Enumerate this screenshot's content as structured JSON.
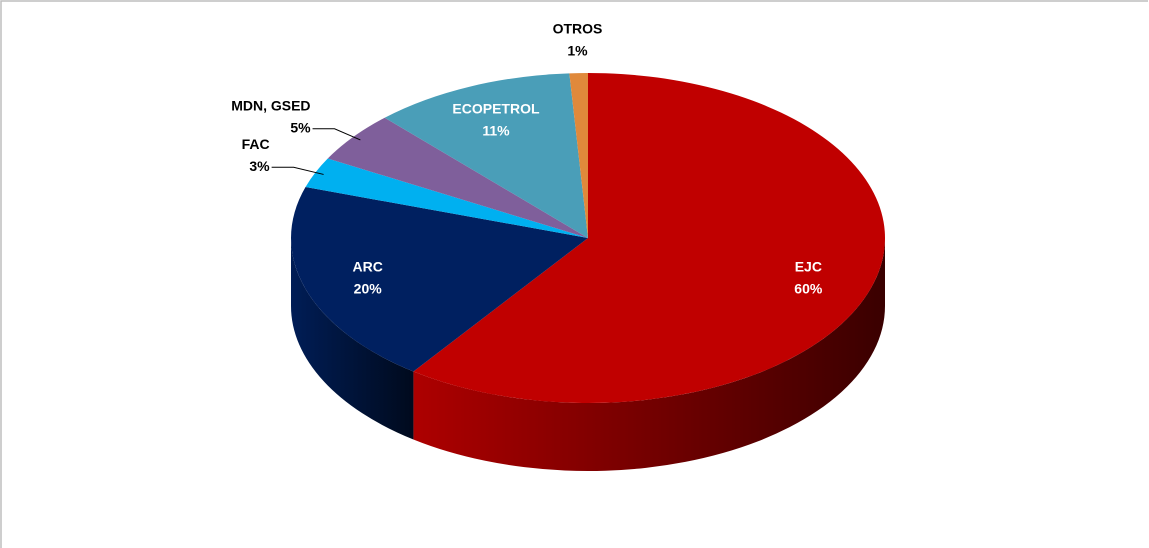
{
  "chart_data": {
    "type": "pie",
    "categories": [
      "EJC",
      "ARC",
      "FAC",
      "MDN, GSED",
      "ECOPETROL",
      "OTROS"
    ],
    "values": [
      60,
      20,
      3,
      5,
      11,
      1
    ],
    "value_labels": [
      "60%",
      "20%",
      "3%",
      "5%",
      "11%",
      "1%"
    ],
    "colors": [
      "#c00000",
      "#002060",
      "#00b0f0",
      "#7f5f9b",
      "#4a9eb8",
      "#e0893b"
    ]
  }
}
